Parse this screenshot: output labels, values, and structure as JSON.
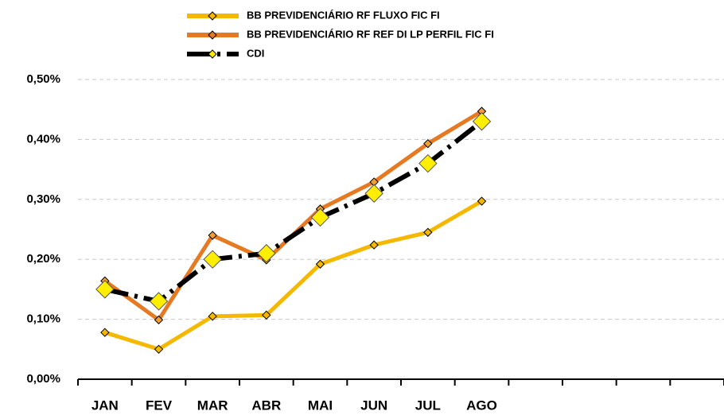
{
  "chart_data": {
    "type": "line",
    "categories": [
      "JAN",
      "FEV",
      "MAR",
      "ABR",
      "MAI",
      "JUN",
      "JUL",
      "AGO",
      null,
      null,
      null,
      null
    ],
    "series": [
      {
        "name": "BB PREVIDENCIÁRIO RF FLUXO FIC FI",
        "color": "#f5b800",
        "dash": false,
        "values": [
          0.078,
          0.05,
          0.105,
          0.107,
          0.192,
          0.224,
          0.245,
          0.297,
          null,
          null,
          null,
          null
        ]
      },
      {
        "name": "BB PREVIDENCIÁRIO RF REF DI LP PERFIL FIC FI",
        "color": "#e57a22",
        "dash": false,
        "values": [
          0.164,
          0.099,
          0.24,
          0.199,
          0.284,
          0.329,
          0.393,
          0.447,
          null,
          null,
          null,
          null
        ]
      },
      {
        "name": "CDI",
        "color": "#000000",
        "dash": true,
        "values": [
          0.15,
          0.13,
          0.2,
          0.21,
          0.27,
          0.31,
          0.36,
          0.43,
          null,
          null,
          null,
          null
        ]
      }
    ],
    "ylim": [
      0,
      0.5
    ],
    "yticks": [
      {
        "value": 0,
        "label": "0,00%"
      },
      {
        "value": 0.1,
        "label": "0,10%"
      },
      {
        "value": 0.2,
        "label": "0,20%"
      },
      {
        "value": 0.3,
        "label": "0,30%"
      },
      {
        "value": 0.4,
        "label": "0,40%"
      },
      {
        "value": 0.5,
        "label": "0,50%"
      }
    ],
    "grid": true
  }
}
